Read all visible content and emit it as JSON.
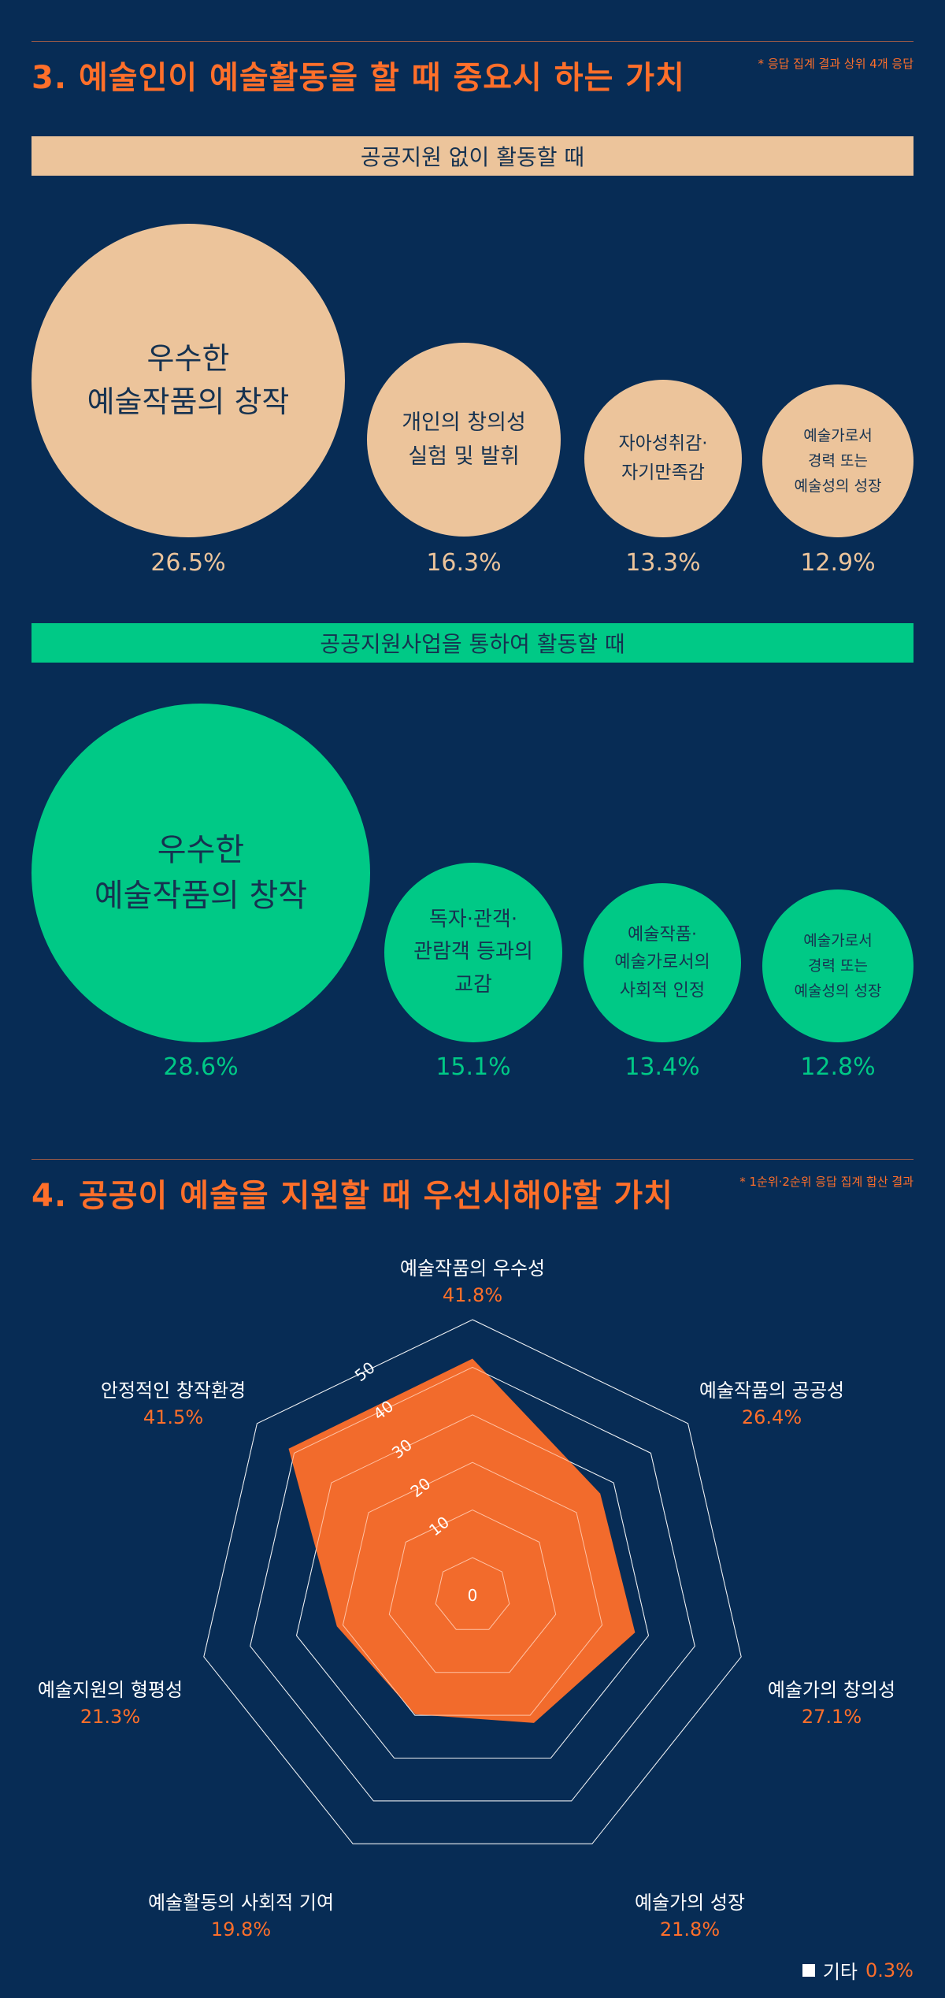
{
  "section3": {
    "title": "3. 예술인이 예술활동을 할 때 중요시 하는 가치",
    "note": "* 응답 집계 결과 상위 4개 응답",
    "groups": [
      {
        "band": "공공지원 없이 활동할 때",
        "color": "#ecc49b",
        "items": [
          {
            "label": "우수한\n예술작품의 창작",
            "value": "26.5%"
          },
          {
            "label": "개인의 창의성\n실험 및 발휘",
            "value": "16.3%"
          },
          {
            "label": "자아성취감·\n자기만족감",
            "value": "13.3%"
          },
          {
            "label": "예술가로서\n경력 또는\n예술성의 성장",
            "value": "12.9%"
          }
        ]
      },
      {
        "band": "공공지원사업을 통하여 활동할 때",
        "color": "#00c986",
        "items": [
          {
            "label": "우수한\n예술작품의 창작",
            "value": "28.6%"
          },
          {
            "label": "독자·관객·\n관람객 등과의\n교감",
            "value": "15.1%"
          },
          {
            "label": "예술작품·\n예술가로서의\n사회적 인정",
            "value": "13.4%"
          },
          {
            "label": "예술가로서\n경력 또는\n예술성의 성장",
            "value": "12.8%"
          }
        ]
      }
    ]
  },
  "section4": {
    "title": "4. 공공이 예술을 지원할 때 우선시해야할 가치",
    "note": "* 1순위·2순위 응답 집계 합산 결과",
    "other_label": "기타",
    "other_value": "0.3%"
  },
  "colors": {
    "background": "#072c55",
    "accent": "#ff6f2a",
    "peach": "#ecc49b",
    "green": "#00c986"
  },
  "chart_data": {
    "type": "radar",
    "categories": [
      "예술작품의 우수성",
      "예술작품의 공공성",
      "예술가의 창의성",
      "예술가의 성장",
      "예술활동의 사회적 기여",
      "예술지원의 형평성",
      "안정적인 창작환경"
    ],
    "value_labels": [
      "41.8%",
      "26.4%",
      "27.1%",
      "21.8%",
      "19.8%",
      "21.3%",
      "41.5%"
    ],
    "values": [
      41.8,
      26.4,
      27.1,
      21.8,
      19.8,
      21.3,
      41.5
    ],
    "rlim": [
      0,
      50
    ],
    "ticks": [
      0,
      10,
      20,
      30,
      40,
      50
    ],
    "tick_labels": [
      "0",
      "10",
      "20",
      "30",
      "40",
      "50"
    ]
  }
}
